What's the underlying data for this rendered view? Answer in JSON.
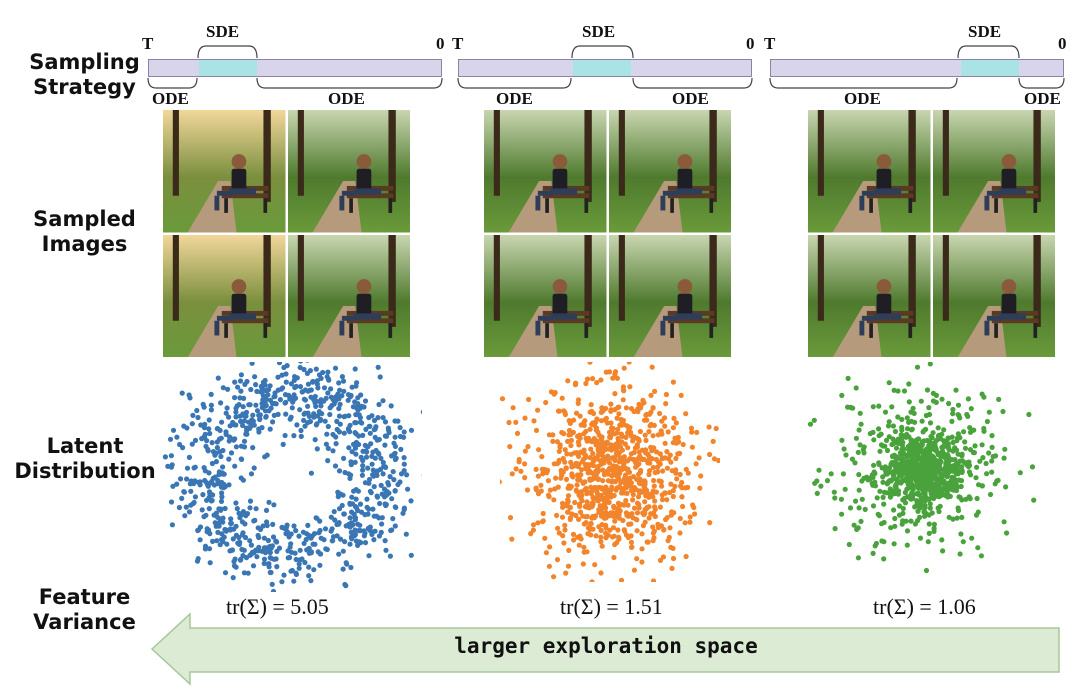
{
  "row_labels": {
    "sampling_strategy": [
      "Sampling",
      "Strategy"
    ],
    "sampled_images": [
      "Sampled",
      "Images"
    ],
    "latent_distribution": [
      "Latent",
      "Distribution"
    ],
    "feature_variance": [
      "Feature",
      "Variance"
    ]
  },
  "timelines": [
    {
      "start": "T",
      "end": "0",
      "sde": "SDE",
      "ode_left": "ODE",
      "ode_right": "ODE",
      "sde_start": 0.17,
      "sde_end": 0.37
    },
    {
      "start": "T",
      "end": "0",
      "sde": "SDE",
      "ode_left": "ODE",
      "ode_right": "ODE",
      "sde_start": 0.39,
      "sde_end": 0.59
    },
    {
      "start": "T",
      "end": "0",
      "sde": "SDE",
      "ode_left": "ODE",
      "ode_right": "ODE",
      "sde_start": 0.65,
      "sde_end": 0.85
    }
  ],
  "traces": [
    "tr(Σ) = 5.05",
    "tr(Σ) = 1.51",
    "tr(Σ) = 1.06"
  ],
  "arrow_text": "larger exploration space",
  "colors": {
    "bar_fill": "#d8d5ea",
    "sde_fill": "#a9e3e3",
    "blue": "#3a76b4",
    "orange": "#f2852c",
    "green": "#4aa23d",
    "arrow_fill": "#dcebd3",
    "arrow_stroke": "#a7c79a"
  },
  "chart_data": [
    {
      "type": "scatter",
      "series": [
        {
          "values": [],
          "color": "#3a76b4"
        }
      ],
      "trace": 5.05
    },
    {
      "type": "scatter",
      "series": [
        {
          "values": [],
          "color": "#f2852c"
        }
      ],
      "trace": 1.51
    },
    {
      "type": "scatter",
      "series": [
        {
          "values": [],
          "color": "#4aa23d"
        }
      ],
      "trace": 1.06
    }
  ]
}
